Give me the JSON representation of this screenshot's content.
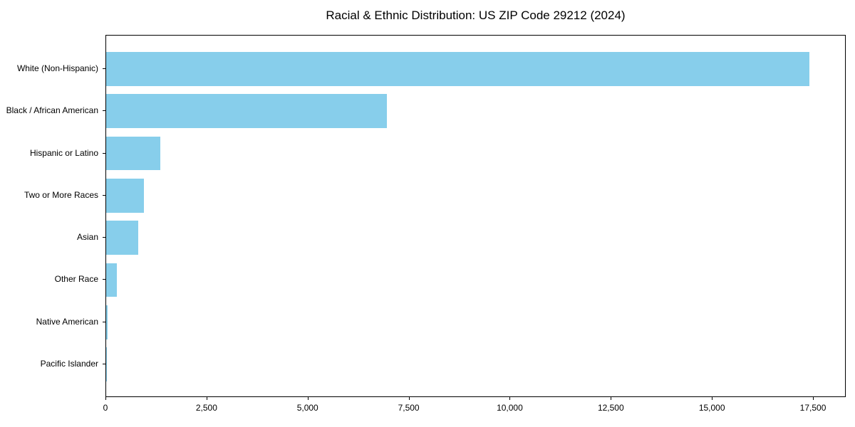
{
  "chart_data": {
    "type": "bar",
    "orientation": "horizontal",
    "title": "Racial & Ethnic Distribution: US ZIP Code 29212 (2024)",
    "categories": [
      "White (Non-Hispanic)",
      "Black / African American",
      "Hispanic or Latino",
      "Two or More Races",
      "Asian",
      "Other Race",
      "Native American",
      "Pacific Islander"
    ],
    "values": [
      17400,
      6950,
      1340,
      930,
      790,
      260,
      30,
      10
    ],
    "xlabel": "",
    "ylabel": "",
    "xlim": [
      0,
      18310
    ],
    "xticks": [
      0,
      2500,
      5000,
      7500,
      10000,
      12500,
      15000,
      17500
    ],
    "xtick_labels": [
      "0",
      "2,500",
      "5,000",
      "7,500",
      "10,000",
      "12,500",
      "15,000",
      "17,500"
    ],
    "bar_color": "#87CEEB",
    "background_color": "#ffffff",
    "axis_color": "#000000",
    "grid": false,
    "legend": false
  }
}
